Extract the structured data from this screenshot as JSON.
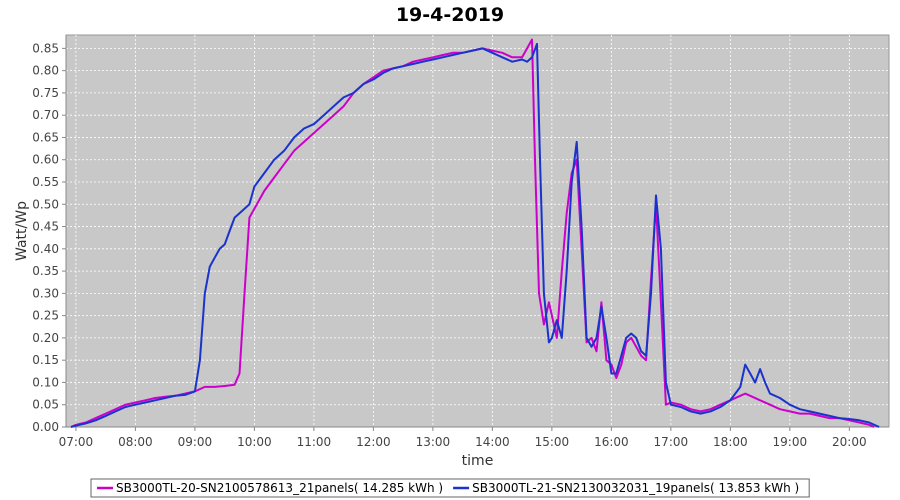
{
  "chart_data": {
    "type": "line",
    "title": "19-4-2019",
    "xlabel": "time",
    "ylabel": "Watt/Wp",
    "xlim": [
      "06:50",
      "20:40"
    ],
    "ylim": [
      0,
      0.88
    ],
    "x_ticks": [
      "07:00",
      "08:00",
      "09:00",
      "10:00",
      "11:00",
      "12:00",
      "13:00",
      "14:00",
      "15:00",
      "16:00",
      "17:00",
      "18:00",
      "19:00",
      "20:00"
    ],
    "y_ticks": [
      "0.00",
      "0.05",
      "0.10",
      "0.15",
      "0.20",
      "0.25",
      "0.30",
      "0.35",
      "0.40",
      "0.45",
      "0.50",
      "0.55",
      "0.60",
      "0.65",
      "0.70",
      "0.75",
      "0.80",
      "0.85"
    ],
    "grid": true,
    "plot_background": "#c8c8c8",
    "legend_position": "bottom",
    "series": [
      {
        "name": "SB3000TL-20-SN2100578613_21panels( 14.285 kWh )",
        "color": "#cc00cc",
        "points": [
          [
            "06:55",
            0.0
          ],
          [
            "07:00",
            0.005
          ],
          [
            "07:10",
            0.01
          ],
          [
            "07:20",
            0.02
          ],
          [
            "07:30",
            0.03
          ],
          [
            "07:40",
            0.04
          ],
          [
            "07:50",
            0.05
          ],
          [
            "08:00",
            0.055
          ],
          [
            "08:10",
            0.06
          ],
          [
            "08:20",
            0.065
          ],
          [
            "08:30",
            0.068
          ],
          [
            "08:40",
            0.07
          ],
          [
            "08:50",
            0.075
          ],
          [
            "09:00",
            0.08
          ],
          [
            "09:05",
            0.085
          ],
          [
            "09:10",
            0.09
          ],
          [
            "09:20",
            0.09
          ],
          [
            "09:30",
            0.092
          ],
          [
            "09:40",
            0.095
          ],
          [
            "09:45",
            0.12
          ],
          [
            "09:50",
            0.3
          ],
          [
            "09:55",
            0.47
          ],
          [
            "10:00",
            0.49
          ],
          [
            "10:10",
            0.53
          ],
          [
            "10:20",
            0.56
          ],
          [
            "10:30",
            0.59
          ],
          [
            "10:40",
            0.62
          ],
          [
            "10:50",
            0.64
          ],
          [
            "11:00",
            0.66
          ],
          [
            "11:10",
            0.68
          ],
          [
            "11:20",
            0.7
          ],
          [
            "11:30",
            0.72
          ],
          [
            "11:40",
            0.75
          ],
          [
            "11:50",
            0.77
          ],
          [
            "12:00",
            0.785
          ],
          [
            "12:10",
            0.8
          ],
          [
            "12:20",
            0.805
          ],
          [
            "12:30",
            0.81
          ],
          [
            "12:40",
            0.82
          ],
          [
            "12:50",
            0.825
          ],
          [
            "13:00",
            0.83
          ],
          [
            "13:10",
            0.835
          ],
          [
            "13:20",
            0.84
          ],
          [
            "13:30",
            0.84
          ],
          [
            "13:40",
            0.845
          ],
          [
            "13:50",
            0.85
          ],
          [
            "14:00",
            0.845
          ],
          [
            "14:10",
            0.84
          ],
          [
            "14:20",
            0.83
          ],
          [
            "14:30",
            0.83
          ],
          [
            "14:35",
            0.85
          ],
          [
            "14:40",
            0.87
          ],
          [
            "14:43",
            0.6
          ],
          [
            "14:47",
            0.3
          ],
          [
            "14:52",
            0.23
          ],
          [
            "14:57",
            0.28
          ],
          [
            "15:00",
            0.25
          ],
          [
            "15:05",
            0.2
          ],
          [
            "15:10",
            0.35
          ],
          [
            "15:15",
            0.48
          ],
          [
            "15:20",
            0.57
          ],
          [
            "15:25",
            0.6
          ],
          [
            "15:30",
            0.4
          ],
          [
            "15:35",
            0.19
          ],
          [
            "15:40",
            0.2
          ],
          [
            "15:45",
            0.17
          ],
          [
            "15:50",
            0.28
          ],
          [
            "15:55",
            0.15
          ],
          [
            "16:00",
            0.14
          ],
          [
            "16:05",
            0.11
          ],
          [
            "16:10",
            0.14
          ],
          [
            "16:15",
            0.19
          ],
          [
            "16:20",
            0.2
          ],
          [
            "16:25",
            0.18
          ],
          [
            "16:30",
            0.16
          ],
          [
            "16:35",
            0.15
          ],
          [
            "16:40",
            0.33
          ],
          [
            "16:45",
            0.5
          ],
          [
            "16:50",
            0.28
          ],
          [
            "16:55",
            0.05
          ],
          [
            "17:00",
            0.055
          ],
          [
            "17:10",
            0.05
          ],
          [
            "17:20",
            0.04
          ],
          [
            "17:30",
            0.035
          ],
          [
            "17:40",
            0.04
          ],
          [
            "17:50",
            0.05
          ],
          [
            "18:00",
            0.06
          ],
          [
            "18:10",
            0.07
          ],
          [
            "18:15",
            0.075
          ],
          [
            "18:20",
            0.07
          ],
          [
            "18:30",
            0.06
          ],
          [
            "18:40",
            0.05
          ],
          [
            "18:50",
            0.04
          ],
          [
            "19:00",
            0.035
          ],
          [
            "19:10",
            0.03
          ],
          [
            "19:20",
            0.03
          ],
          [
            "19:30",
            0.025
          ],
          [
            "19:40",
            0.02
          ],
          [
            "19:50",
            0.02
          ],
          [
            "20:00",
            0.015
          ],
          [
            "20:10",
            0.01
          ],
          [
            "20:20",
            0.005
          ],
          [
            "20:25",
            0.0
          ]
        ]
      },
      {
        "name": "SB3000TL-21-SN2130032031_19panels( 13.853 kWh )",
        "color": "#1a33cc",
        "points": [
          [
            "06:55",
            0.0
          ],
          [
            "07:00",
            0.003
          ],
          [
            "07:10",
            0.008
          ],
          [
            "07:20",
            0.015
          ],
          [
            "07:30",
            0.025
          ],
          [
            "07:40",
            0.035
          ],
          [
            "07:50",
            0.045
          ],
          [
            "08:00",
            0.05
          ],
          [
            "08:10",
            0.055
          ],
          [
            "08:20",
            0.06
          ],
          [
            "08:30",
            0.065
          ],
          [
            "08:40",
            0.07
          ],
          [
            "08:50",
            0.072
          ],
          [
            "09:00",
            0.08
          ],
          [
            "09:05",
            0.15
          ],
          [
            "09:10",
            0.3
          ],
          [
            "09:15",
            0.36
          ],
          [
            "09:20",
            0.38
          ],
          [
            "09:25",
            0.4
          ],
          [
            "09:30",
            0.41
          ],
          [
            "09:35",
            0.44
          ],
          [
            "09:40",
            0.47
          ],
          [
            "09:45",
            0.48
          ],
          [
            "09:50",
            0.49
          ],
          [
            "09:55",
            0.5
          ],
          [
            "10:00",
            0.54
          ],
          [
            "10:10",
            0.57
          ],
          [
            "10:20",
            0.6
          ],
          [
            "10:30",
            0.62
          ],
          [
            "10:40",
            0.65
          ],
          [
            "10:50",
            0.67
          ],
          [
            "11:00",
            0.68
          ],
          [
            "11:10",
            0.7
          ],
          [
            "11:20",
            0.72
          ],
          [
            "11:30",
            0.74
          ],
          [
            "11:40",
            0.75
          ],
          [
            "11:50",
            0.77
          ],
          [
            "12:00",
            0.78
          ],
          [
            "12:10",
            0.795
          ],
          [
            "12:20",
            0.805
          ],
          [
            "12:30",
            0.81
          ],
          [
            "12:40",
            0.815
          ],
          [
            "12:50",
            0.82
          ],
          [
            "13:00",
            0.825
          ],
          [
            "13:10",
            0.83
          ],
          [
            "13:20",
            0.835
          ],
          [
            "13:30",
            0.84
          ],
          [
            "13:40",
            0.845
          ],
          [
            "13:50",
            0.85
          ],
          [
            "14:00",
            0.84
          ],
          [
            "14:10",
            0.83
          ],
          [
            "14:20",
            0.82
          ],
          [
            "14:30",
            0.825
          ],
          [
            "14:35",
            0.82
          ],
          [
            "14:40",
            0.83
          ],
          [
            "14:45",
            0.86
          ],
          [
            "14:48",
            0.6
          ],
          [
            "14:52",
            0.3
          ],
          [
            "14:57",
            0.19
          ],
          [
            "15:00",
            0.2
          ],
          [
            "15:05",
            0.24
          ],
          [
            "15:10",
            0.2
          ],
          [
            "15:15",
            0.35
          ],
          [
            "15:20",
            0.55
          ],
          [
            "15:25",
            0.64
          ],
          [
            "15:30",
            0.45
          ],
          [
            "15:35",
            0.2
          ],
          [
            "15:40",
            0.18
          ],
          [
            "15:45",
            0.2
          ],
          [
            "15:50",
            0.27
          ],
          [
            "15:55",
            0.2
          ],
          [
            "16:00",
            0.12
          ],
          [
            "16:05",
            0.12
          ],
          [
            "16:10",
            0.16
          ],
          [
            "16:15",
            0.2
          ],
          [
            "16:20",
            0.21
          ],
          [
            "16:25",
            0.2
          ],
          [
            "16:30",
            0.17
          ],
          [
            "16:35",
            0.16
          ],
          [
            "16:40",
            0.3
          ],
          [
            "16:45",
            0.52
          ],
          [
            "16:50",
            0.4
          ],
          [
            "16:55",
            0.1
          ],
          [
            "17:00",
            0.05
          ],
          [
            "17:10",
            0.045
          ],
          [
            "17:20",
            0.035
          ],
          [
            "17:30",
            0.03
          ],
          [
            "17:40",
            0.035
          ],
          [
            "17:50",
            0.045
          ],
          [
            "18:00",
            0.06
          ],
          [
            "18:10",
            0.09
          ],
          [
            "18:15",
            0.14
          ],
          [
            "18:20",
            0.12
          ],
          [
            "18:25",
            0.1
          ],
          [
            "18:30",
            0.13
          ],
          [
            "18:35",
            0.1
          ],
          [
            "18:40",
            0.075
          ],
          [
            "18:50",
            0.065
          ],
          [
            "19:00",
            0.05
          ],
          [
            "19:10",
            0.04
          ],
          [
            "19:20",
            0.035
          ],
          [
            "19:30",
            0.03
          ],
          [
            "19:40",
            0.025
          ],
          [
            "19:50",
            0.02
          ],
          [
            "20:00",
            0.018
          ],
          [
            "20:10",
            0.015
          ],
          [
            "20:20",
            0.01
          ],
          [
            "20:30",
            0.0
          ]
        ]
      }
    ]
  }
}
